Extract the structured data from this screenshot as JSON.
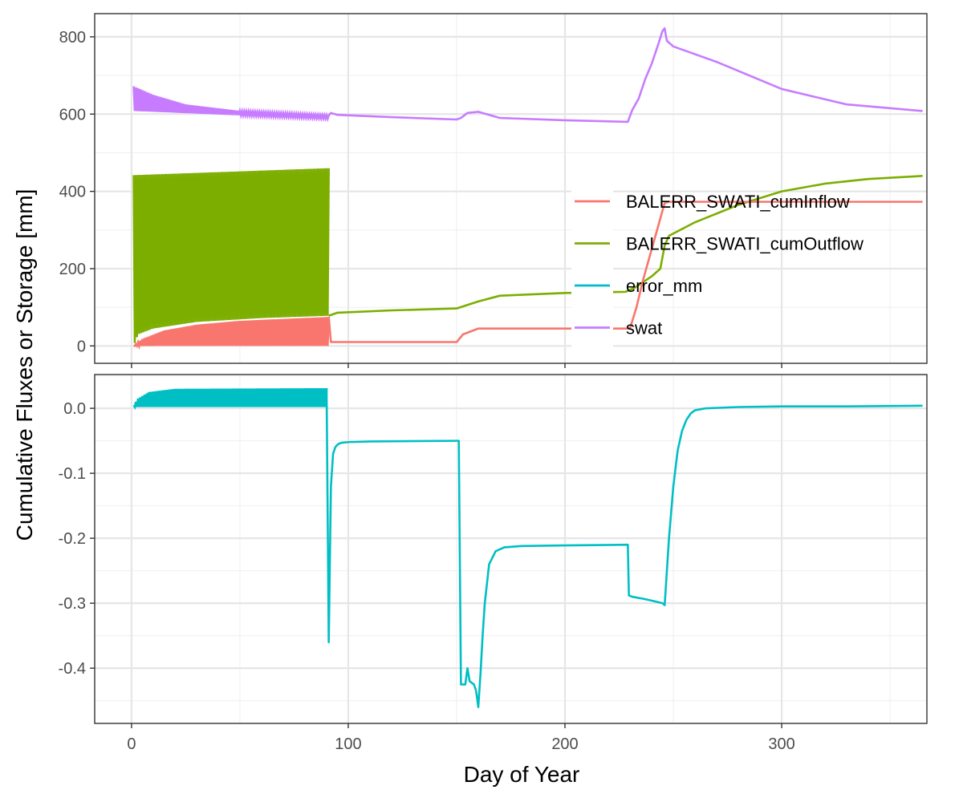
{
  "chart_data": {
    "type": "line",
    "xlabel": "Day of Year",
    "ylabel": "Cumulative Fluxes or Storage [mm]",
    "x_ticks": [
      0,
      100,
      200,
      300
    ],
    "xlim": [
      -17,
      367
    ],
    "legend_position": "right, inside top panel",
    "colors": {
      "BALERR_SWATI_cumInflow": "#F8766D",
      "BALERR_SWATI_cumOutflow": "#7CAE00",
      "error_mm": "#00BFC4",
      "swat": "#C77CFF"
    },
    "legend": [
      {
        "name": "BALERR_SWATI_cumInflow",
        "color": "#F8766D"
      },
      {
        "name": "BALERR_SWATI_cumOutflow",
        "color": "#7CAE00"
      },
      {
        "name": "error_mm",
        "color": "#00BFC4"
      },
      {
        "name": "swat",
        "color": "#C77CFF"
      }
    ],
    "panels": [
      {
        "id": "fluxes",
        "ylim": [
          -45,
          860
        ],
        "y_ticks": [
          0,
          200,
          400,
          600,
          800
        ],
        "y_tick_labels": [
          "0",
          "200",
          "400",
          "600",
          "800"
        ],
        "series": [
          {
            "name": "swat",
            "color": "#C77CFF",
            "oscillation": {
              "x_start": 1,
              "x_end": 91,
              "low": [
                [
                  1,
                  608
                ],
                [
                  91,
                  588
                ]
              ],
              "high": [
                [
                  1,
                  672
                ],
                [
                  10,
                  650
                ],
                [
                  25,
                  625
                ],
                [
                  50,
                  608
                ],
                [
                  91,
                  597
                ]
              ]
            },
            "x": [
              91,
              92,
              95,
              120,
              150,
              152,
              155,
              160,
              165,
              170,
              200,
              229,
              231,
              234,
              237,
              240,
              243,
              245,
              246,
              247,
              250,
              270,
              300,
              330,
              365
            ],
            "y": [
              597,
              603,
              598,
              592,
              586,
              590,
              603,
              606,
              598,
              590,
              584,
              580,
              610,
              640,
              690,
              730,
              780,
              815,
              822,
              790,
              775,
              735,
              665,
              625,
              608
            ]
          },
          {
            "name": "BALERR_SWATI_cumOutflow",
            "color": "#7CAE00",
            "oscillation": {
              "x_start": 1,
              "x_end": 91,
              "low": [
                [
                  1,
                  0
                ],
                [
                  3,
                  30
                ],
                [
                  10,
                  45
                ],
                [
                  30,
                  62
                ],
                [
                  60,
                  72
                ],
                [
                  91,
                  78
                ]
              ],
              "high": [
                [
                  1,
                  442
                ],
                [
                  91,
                  460
                ]
              ]
            },
            "x": [
              91,
              95,
              120,
              150,
              160,
              170,
              200,
              228,
              232,
              236,
              240,
              244,
              246,
              248,
              260,
              280,
              300,
              320,
              340,
              365
            ],
            "y": [
              78,
              86,
              92,
              97,
              115,
              130,
              137,
              140,
              150,
              165,
              180,
              200,
              260,
              285,
              320,
              365,
              400,
              420,
              432,
              440
            ]
          },
          {
            "name": "BALERR_SWATI_cumInflow",
            "color": "#F8766D",
            "oscillation": {
              "x_start": 1,
              "x_end": 91,
              "low": [
                [
                  1,
                  0
                ],
                [
                  91,
                  0
                ]
              ],
              "high": [
                [
                  1,
                  0
                ],
                [
                  5,
                  18
                ],
                [
                  15,
                  40
                ],
                [
                  30,
                  55
                ],
                [
                  50,
                  65
                ],
                [
                  91,
                  75
                ]
              ]
            },
            "x": [
              91,
              92,
              150,
              153,
              160,
              229,
              230,
              233,
              236,
              240,
              243,
              246,
              248,
              260,
              300,
              365
            ],
            "y": [
              75,
              10,
              10,
              30,
              45,
              45,
              45,
              100,
              170,
              250,
              310,
              370,
              373,
              373,
              373,
              373
            ]
          }
        ]
      },
      {
        "id": "error",
        "ylim": [
          -0.485,
          0.052
        ],
        "y_ticks": [
          0,
          -0.1,
          -0.2,
          -0.3,
          -0.4
        ],
        "y_tick_labels": [
          "0.0",
          "-0.1",
          "-0.2",
          "-0.3",
          "-0.4"
        ],
        "series": [
          {
            "name": "error_mm",
            "color": "#00BFC4",
            "oscillation": {
              "x_start": 1,
              "x_end": 90,
              "low": [
                [
                  1,
                  0.002
                ],
                [
                  90,
                  0.002
                ]
              ],
              "high": [
                [
                  1,
                  0.005
                ],
                [
                  3,
                  0.015
                ],
                [
                  8,
                  0.025
                ],
                [
                  20,
                  0.03
                ],
                [
                  90,
                  0.031
                ]
              ]
            },
            "x": [
              90,
              91,
              92,
              93,
              94,
              95,
              96,
              97,
              100,
              110,
              150,
              151,
              152,
              153,
              154,
              155,
              156,
              158,
              159,
              160,
              161,
              162,
              163,
              165,
              168,
              172,
              180,
              200,
              229,
              229.5,
              231,
              236,
              240,
              245,
              246,
              248,
              250,
              252,
              254,
              256,
              258,
              260,
              265,
              280,
              300,
              330,
              365
            ],
            "y": [
              0.031,
              -0.36,
              -0.12,
              -0.07,
              -0.06,
              -0.056,
              -0.054,
              -0.053,
              -0.052,
              -0.051,
              -0.05,
              -0.05,
              -0.425,
              -0.425,
              -0.425,
              -0.4,
              -0.42,
              -0.425,
              -0.435,
              -0.46,
              -0.41,
              -0.35,
              -0.3,
              -0.24,
              -0.22,
              -0.214,
              -0.212,
              -0.211,
              -0.21,
              -0.288,
              -0.29,
              -0.293,
              -0.296,
              -0.3,
              -0.303,
              -0.2,
              -0.12,
              -0.065,
              -0.035,
              -0.018,
              -0.008,
              -0.003,
              0.0,
              0.002,
              0.003,
              0.003,
              0.004
            ]
          }
        ]
      }
    ]
  }
}
